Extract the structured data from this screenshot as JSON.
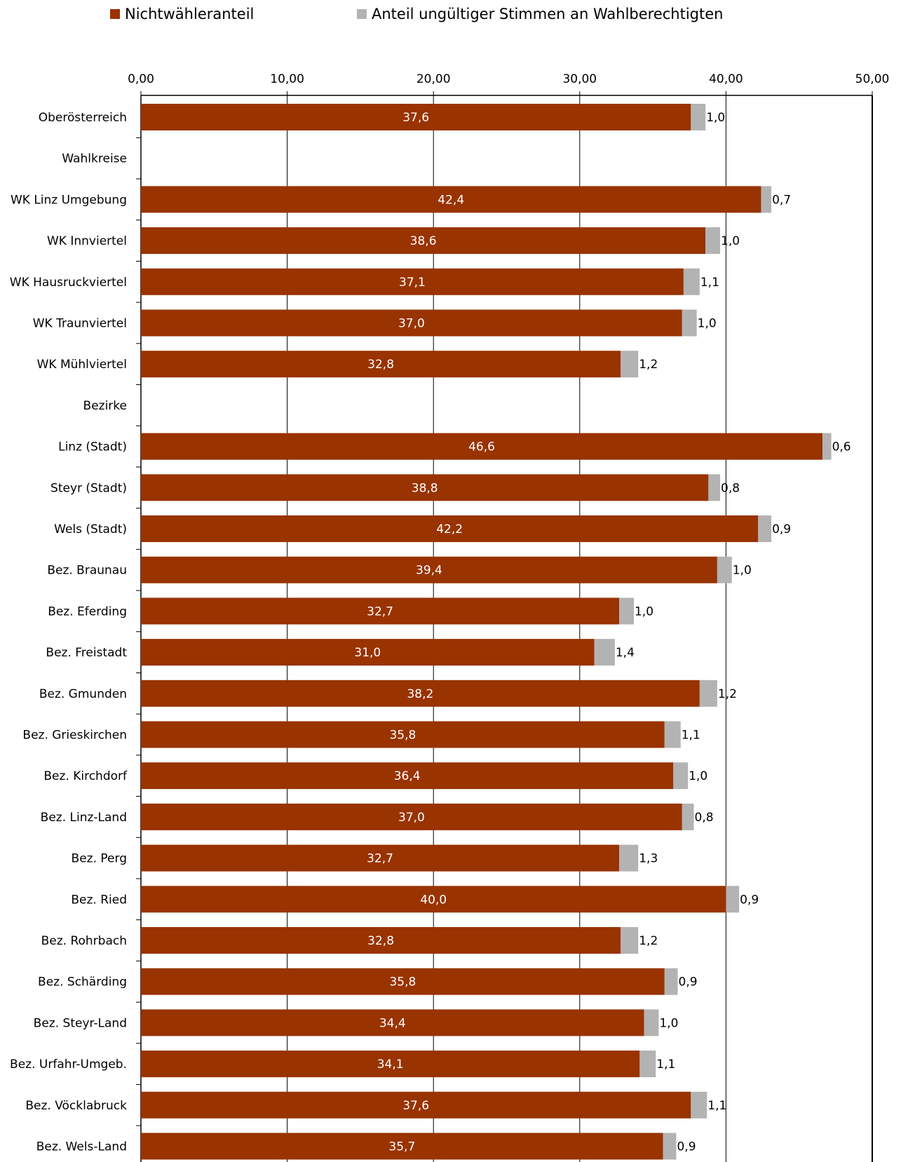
{
  "legend": {
    "nonvoter_label": "Nichtwähleranteil",
    "invalid_label": "Anteil ungültiger Stimmen an Wahlberechtigten"
  },
  "colors": {
    "nonvoter": "#993300",
    "invalid": "#b3b3b3",
    "gridline": "#000000",
    "inner_label": "#ffffff",
    "outer_label": "#000000"
  },
  "chart_data": {
    "type": "bar",
    "orientation": "horizontal",
    "stacked": true,
    "xlim": [
      0,
      50
    ],
    "x_ticks": [
      "0,00",
      "10,00",
      "20,00",
      "30,00",
      "40,00",
      "50,00"
    ],
    "x_tick_values": [
      0,
      10,
      20,
      30,
      40,
      50
    ],
    "x_axis_position": "top",
    "grid": true,
    "legend_position": "top",
    "categories": [
      "Oberösterreich",
      "Wahlkreise",
      "WK Linz Umgebung",
      "WK Innviertel",
      "WK Hausruckviertel",
      "WK Traunviertel",
      "WK Mühlviertel",
      "Bezirke",
      "Linz (Stadt)",
      "Steyr (Stadt)",
      "Wels (Stadt)",
      "Bez. Braunau",
      "Bez. Eferding",
      "Bez. Freistadt",
      "Bez. Gmunden",
      "Bez. Grieskirchen",
      "Bez. Kirchdorf",
      "Bez. Linz-Land",
      "Bez. Perg",
      "Bez. Ried",
      "Bez. Rohrbach",
      "Bez. Schärding",
      "Bez. Steyr-Land",
      "Bez. Urfahr-Umgeb.",
      "Bez. Vöcklabruck",
      "Bez. Wels-Land"
    ],
    "series": [
      {
        "name": "Nichtwähleranteil",
        "values": [
          37.6,
          null,
          42.4,
          38.6,
          37.1,
          37.0,
          32.8,
          null,
          46.6,
          38.8,
          42.2,
          39.4,
          32.7,
          31.0,
          38.2,
          35.8,
          36.4,
          37.0,
          32.7,
          40.0,
          32.8,
          35.8,
          34.4,
          34.1,
          37.6,
          35.7
        ],
        "labels": [
          "37,6",
          "",
          "42,4",
          "38,6",
          "37,1",
          "37,0",
          "32,8",
          "",
          "46,6",
          "38,8",
          "42,2",
          "39,4",
          "32,7",
          "31,0",
          "38,2",
          "35,8",
          "36,4",
          "37,0",
          "32,7",
          "40,0",
          "32,8",
          "35,8",
          "34,4",
          "34,1",
          "37,6",
          "35,7"
        ]
      },
      {
        "name": "Anteil ungültiger Stimmen an Wahlberechtigten",
        "values": [
          1.0,
          null,
          0.7,
          1.0,
          1.1,
          1.0,
          1.2,
          null,
          0.6,
          0.8,
          0.9,
          1.0,
          1.0,
          1.4,
          1.2,
          1.1,
          1.0,
          0.8,
          1.3,
          0.9,
          1.2,
          0.9,
          1.0,
          1.1,
          1.1,
          0.9
        ],
        "labels": [
          "1,0",
          "",
          "0,7",
          "1,0",
          "1,1",
          "1,0",
          "1,2",
          "",
          "0,6",
          "0,8",
          "0,9",
          "1,0",
          "1,0",
          "1,4",
          "1,2",
          "1,1",
          "1,0",
          "0,8",
          "1,3",
          "0,9",
          "1,2",
          "0,9",
          "1,0",
          "1,1",
          "1,1",
          "0,9"
        ]
      }
    ]
  }
}
